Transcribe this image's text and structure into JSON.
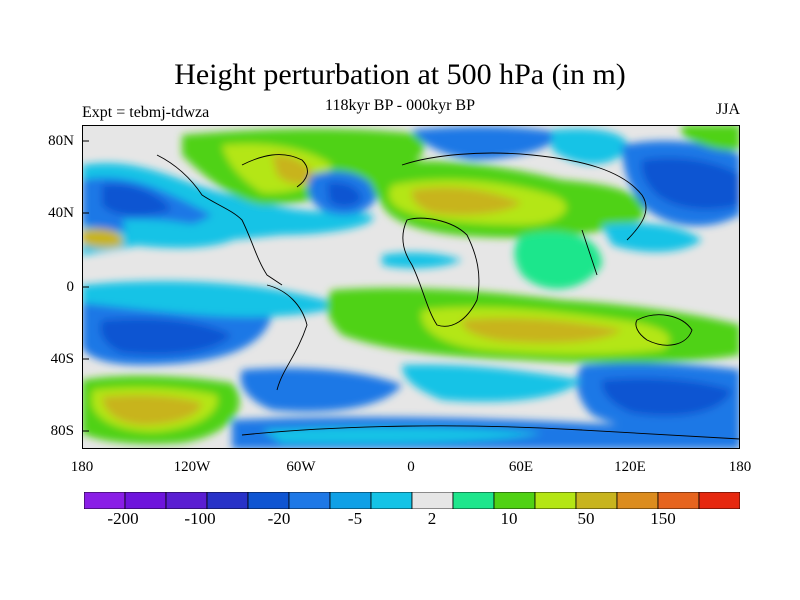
{
  "title": "Height perturbation at 500 hPa (in m)",
  "subtitle": "118kyr BP - 000kyr BP",
  "left_label": "Expt = tebmj-tdwza",
  "right_label": "JJA",
  "lat_labels": [
    "80N",
    "40N",
    "0",
    "40S",
    "80S"
  ],
  "lon_labels": [
    "180",
    "120W",
    "60W",
    "0",
    "60E",
    "120E",
    "180"
  ],
  "colorbar": {
    "colors": [
      "#8a1ee6",
      "#6e14dc",
      "#5a1ed2",
      "#2832c8",
      "#0f55d2",
      "#1e78e6",
      "#0fa0e6",
      "#14c3e6",
      "#e6e6e6",
      "#1ee68c",
      "#50d214",
      "#b4e614",
      "#c8b41e",
      "#dc8c1e",
      "#e6641e",
      "#e6280f"
    ],
    "tick_labels": [
      "-200",
      "-100",
      "-20",
      "-5",
      "2",
      "10",
      "50",
      "150"
    ]
  },
  "chart_data": {
    "type": "contour-map",
    "projection": "cylindrical equidistant",
    "lon_range": [
      -180,
      180
    ],
    "lat_range": [
      -90,
      90
    ],
    "variable": "Height perturbation at 500 hPa",
    "units": "m",
    "season": "JJA",
    "levels": [
      -200,
      -100,
      -20,
      -5,
      2,
      10,
      50,
      150
    ]
  }
}
